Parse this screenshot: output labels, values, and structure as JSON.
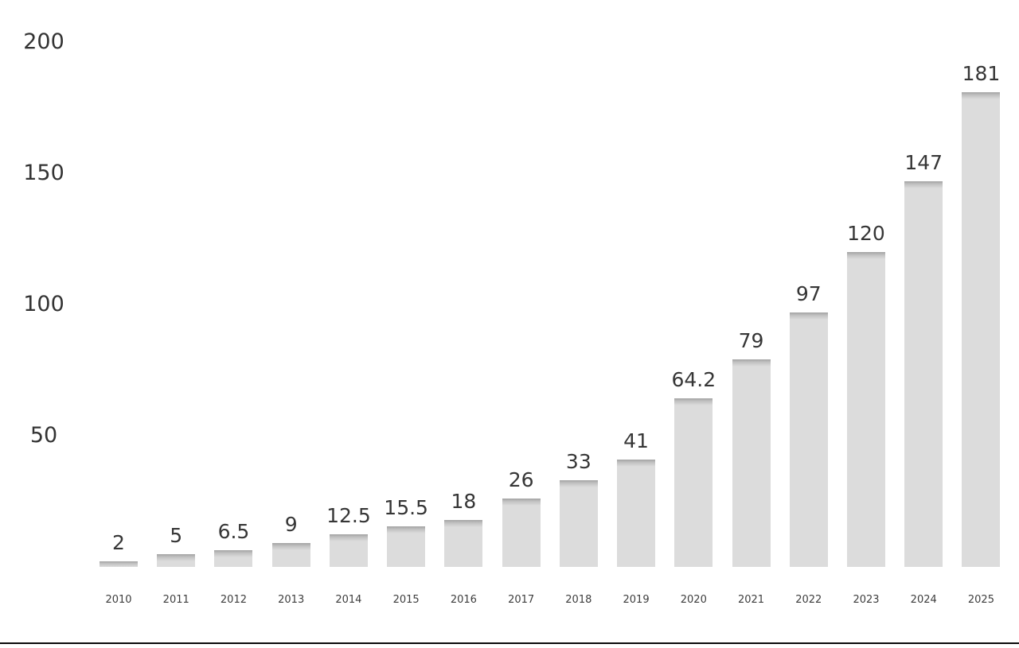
{
  "chart_data": {
    "type": "bar",
    "categories": [
      "2010",
      "2011",
      "2012",
      "2013",
      "2014",
      "2015",
      "2016",
      "2017",
      "2018",
      "2019",
      "2020",
      "2021",
      "2022",
      "2023",
      "2024",
      "2025"
    ],
    "values": [
      2,
      5,
      6.5,
      9,
      12.5,
      15.5,
      18,
      26,
      33,
      41,
      64.2,
      79,
      97,
      120,
      147,
      181
    ],
    "value_labels": [
      "2",
      "5",
      "6.5",
      "9",
      "12.5",
      "15.5",
      "18",
      "26",
      "33",
      "41",
      "64.2",
      "79",
      "97",
      "120",
      "147",
      "181"
    ],
    "title": "",
    "xlabel": "",
    "ylabel": "",
    "ylim": [
      0,
      200
    ],
    "yticks": [
      50,
      100,
      150,
      200
    ],
    "grid": false,
    "legend": "none",
    "bar_color": "#dcdcdc",
    "bar_cap_color": "#a3a3a3",
    "label_color": "#363636",
    "divider_color": "#0a0a0a"
  }
}
